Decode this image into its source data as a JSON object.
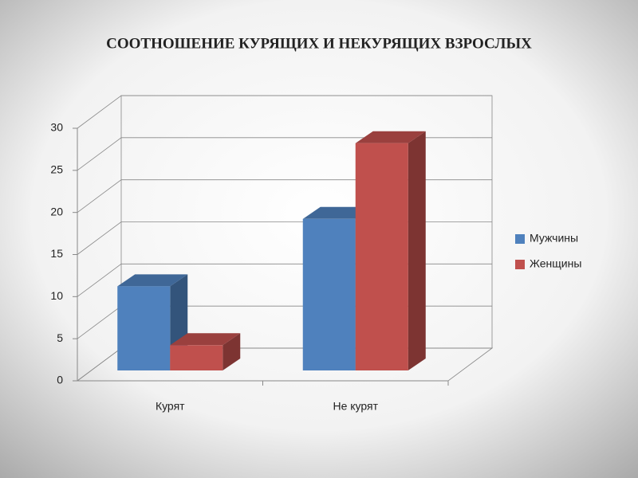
{
  "chart_data": {
    "type": "bar3d",
    "title": "СООТНОШЕНИЕ КУРЯЩИХ И НЕКУРЯЩИХ ВЗРОСЛЫХ",
    "categories": [
      "Курят",
      "Не курят"
    ],
    "series": [
      {
        "name": "Мужчины",
        "color": "#4f81bd",
        "values": [
          10,
          18
        ]
      },
      {
        "name": "Женщины",
        "color": "#c0504d",
        "values": [
          3,
          27
        ]
      }
    ],
    "ylim": [
      0,
      30
    ],
    "yticks": [
      0,
      5,
      10,
      15,
      20,
      25,
      30
    ],
    "grid": true,
    "legend": "right"
  }
}
